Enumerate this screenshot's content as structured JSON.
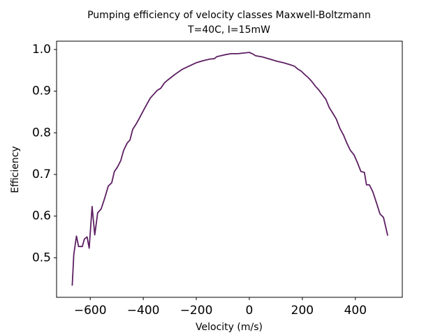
{
  "chart_data": {
    "type": "line",
    "title": "Pumping efficiency of velocity classes Maxwell-Boltzmann",
    "subtitle": "T=40C, I=15mW",
    "x_label": "Velocity (m/s)",
    "y_label": "Efficiency",
    "xlim": [
      -727,
      577
    ],
    "ylim": [
      0.405,
      1.02
    ],
    "xticks": [
      {
        "value": -600,
        "label": "−600"
      },
      {
        "value": -400,
        "label": "−400"
      },
      {
        "value": -200,
        "label": "−200"
      },
      0,
      200,
      400
    ],
    "yticks": [
      0.5,
      0.6,
      0.7,
      0.8,
      0.9,
      {
        "value": 1,
        "label": "1.0"
      }
    ],
    "grid": false,
    "series": [
      {
        "color": "#5c1f62",
        "x": [
          -668,
          -662,
          -652,
          -644,
          -630,
          -622,
          -612,
          -604,
          -593,
          -583,
          -572,
          -559,
          -546,
          -532,
          -519,
          -509,
          -498,
          -485,
          -474,
          -461,
          -450,
          -440,
          -426,
          -413,
          -400,
          -387,
          -374,
          -360,
          -347,
          -334,
          -320,
          -307,
          -281,
          -254,
          -228,
          -201,
          -175,
          -148,
          -132,
          -122,
          -95,
          -69,
          -42,
          -16,
          0,
          11,
          24,
          50,
          77,
          103,
          130,
          156,
          170,
          183,
          196,
          209,
          223,
          236,
          249,
          262,
          275,
          289,
          302,
          315,
          328,
          342,
          355,
          368,
          381,
          395,
          408,
          421,
          434,
          442,
          453,
          466,
          479,
          493,
          506,
          522
        ],
        "values": [
          0.433,
          0.508,
          0.552,
          0.527,
          0.527,
          0.545,
          0.55,
          0.523,
          0.623,
          0.555,
          0.608,
          0.617,
          0.642,
          0.672,
          0.68,
          0.707,
          0.717,
          0.733,
          0.758,
          0.775,
          0.783,
          0.808,
          0.822,
          0.837,
          0.853,
          0.868,
          0.883,
          0.893,
          0.902,
          0.907,
          0.92,
          0.927,
          0.94,
          0.952,
          0.96,
          0.968,
          0.973,
          0.977,
          0.978,
          0.983,
          0.987,
          0.99,
          0.99,
          0.992,
          0.993,
          0.99,
          0.985,
          0.982,
          0.977,
          0.972,
          0.968,
          0.963,
          0.96,
          0.953,
          0.948,
          0.94,
          0.932,
          0.923,
          0.912,
          0.903,
          0.892,
          0.88,
          0.86,
          0.847,
          0.833,
          0.81,
          0.795,
          0.775,
          0.758,
          0.747,
          0.728,
          0.707,
          0.705,
          0.675,
          0.675,
          0.658,
          0.633,
          0.605,
          0.597,
          0.553
        ]
      }
    ]
  }
}
